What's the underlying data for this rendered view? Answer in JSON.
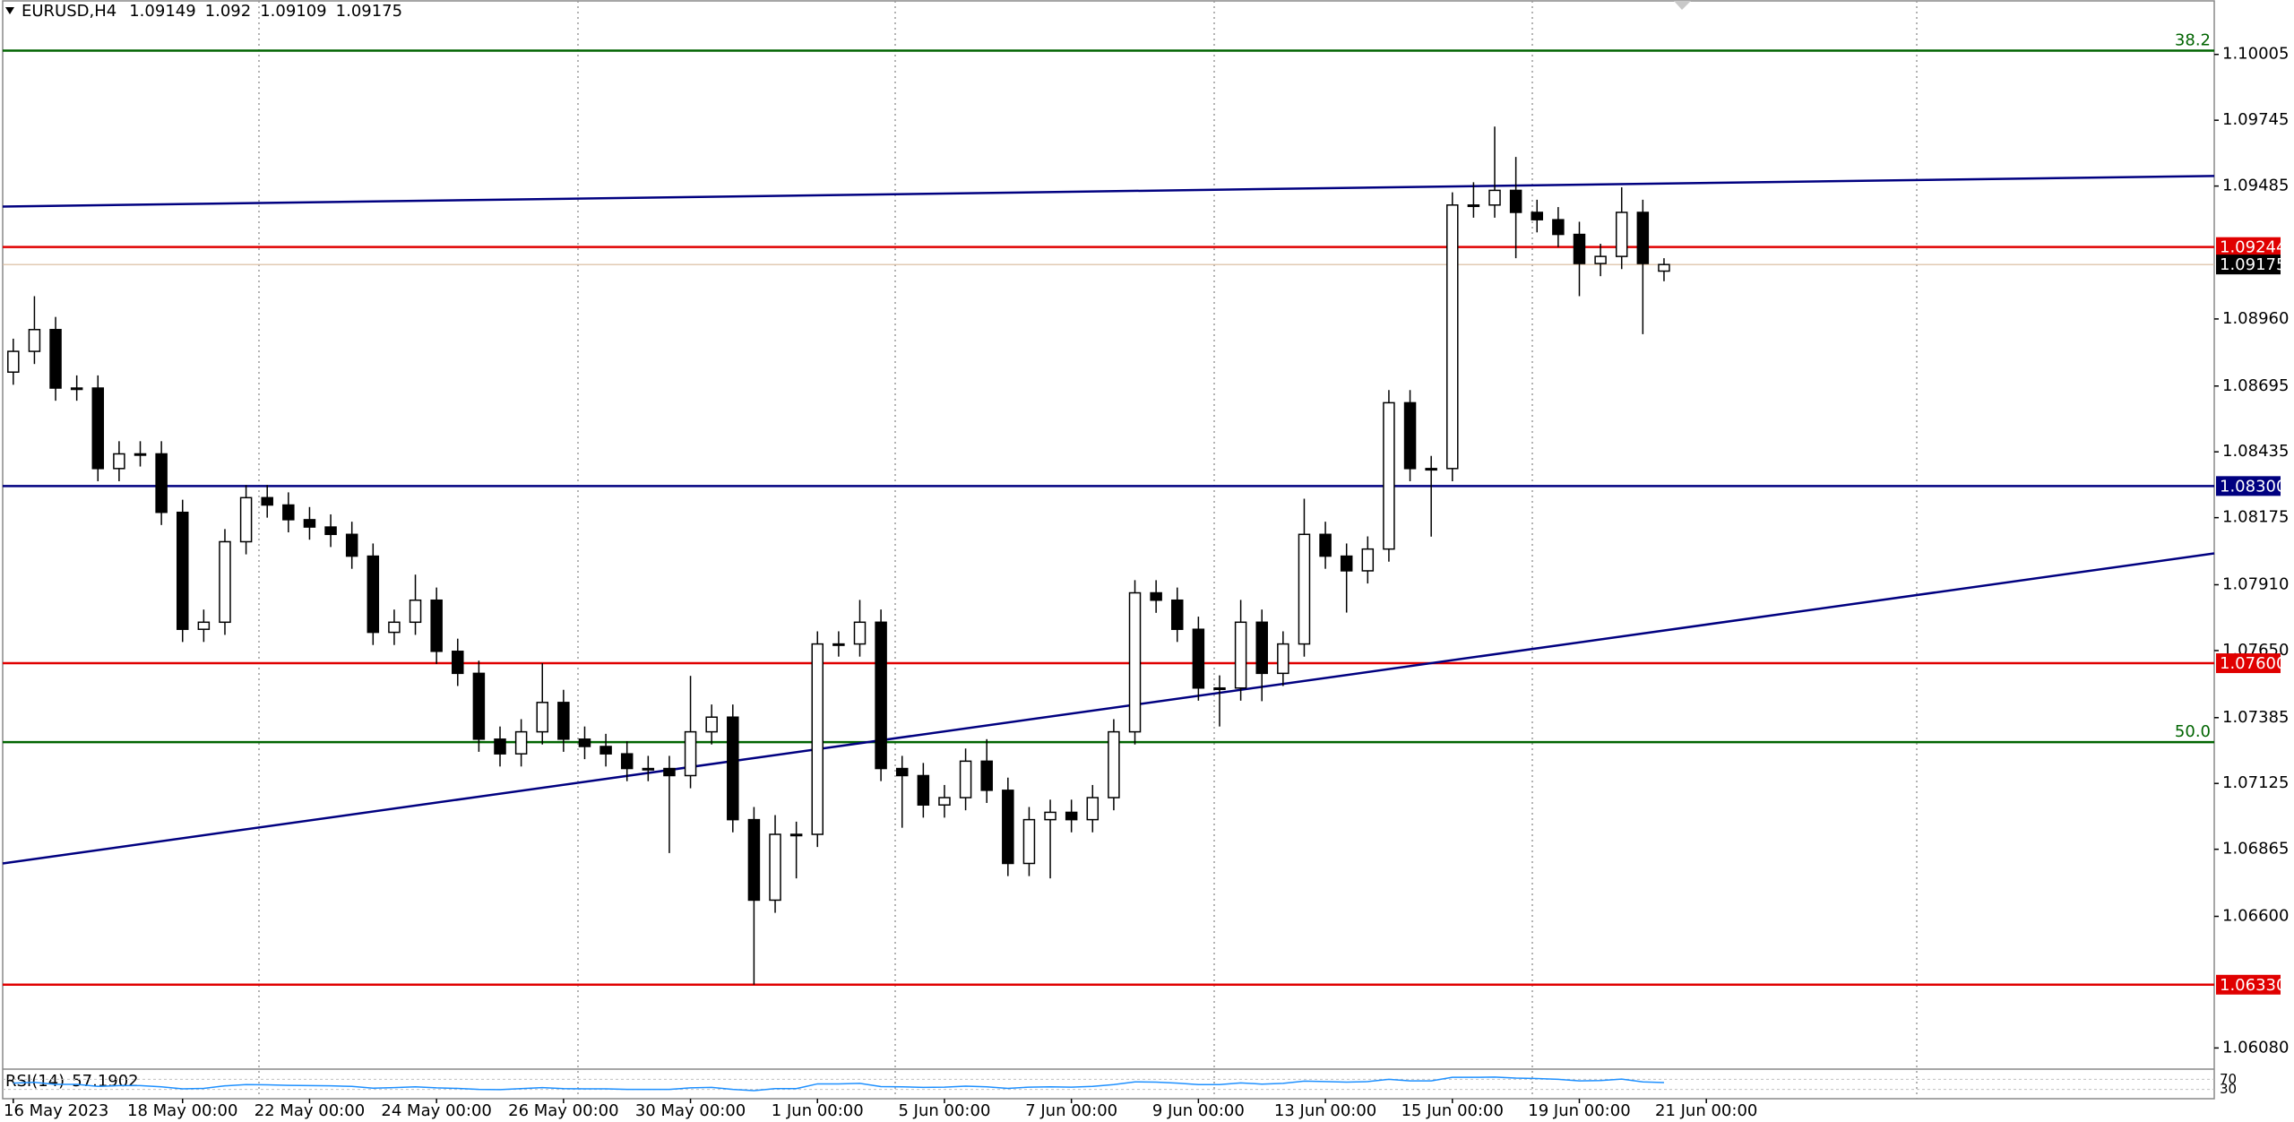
{
  "chart_data": {
    "type": "candlestick",
    "title": "EURUSD,H4",
    "up_color": "#ffffff",
    "down_color": "#000000",
    "open": [
      1.0875,
      1.08832,
      1.08918,
      1.08687,
      1.08687,
      1.08369,
      1.08427,
      1.08427,
      1.08196,
      1.07734,
      1.07762,
      1.0808,
      1.08254,
      1.08225,
      1.08167,
      1.08138,
      1.08109,
      1.08023,
      1.07722,
      1.07762,
      1.07849,
      1.07647,
      1.0756,
      1.073,
      1.07242,
      1.07329,
      1.07445,
      1.073,
      1.07271,
      1.07242,
      1.07184,
      1.07184,
      1.07156,
      1.07329,
      1.07387,
      1.06982,
      1.06664,
      1.06924,
      1.06924,
      1.07676,
      1.07676,
      1.07762,
      1.07184,
      1.07156,
      1.0704,
      1.07069,
      1.07213,
      1.07098,
      1.06809,
      1.06982,
      1.07011,
      1.06982,
      1.07069,
      1.07329,
      1.07878,
      1.07849,
      1.07734,
      1.07502,
      1.07502,
      1.07762,
      1.0756,
      1.07676,
      1.08109,
      1.08023,
      1.07965,
      1.08051,
      1.08629,
      1.08369,
      1.08369,
      1.0941,
      1.0941,
      1.09468,
      1.09381,
      1.09352,
      1.09294,
      1.09179,
      1.09207,
      1.09381,
      1.09149
    ],
    "high": [
      1.08882,
      1.0905,
      1.08968,
      1.08737,
      1.08737,
      1.08477,
      1.08477,
      1.08477,
      1.08246,
      1.07812,
      1.0813,
      1.08304,
      1.08304,
      1.08275,
      1.08217,
      1.08188,
      1.08159,
      1.08073,
      1.07812,
      1.0795,
      1.07899,
      1.07697,
      1.0761,
      1.0735,
      1.07379,
      1.076,
      1.07495,
      1.0735,
      1.07321,
      1.07292,
      1.07234,
      1.07234,
      1.0755,
      1.07437,
      1.07437,
      1.07032,
      1.07,
      1.06974,
      1.07726,
      1.07726,
      1.0785,
      1.07812,
      1.07234,
      1.07206,
      1.07119,
      1.07263,
      1.073,
      1.07148,
      1.07032,
      1.07061,
      1.07061,
      1.07119,
      1.07379,
      1.07928,
      1.07928,
      1.07899,
      1.07784,
      1.07552,
      1.0785,
      1.07812,
      1.07726,
      1.0825,
      1.08159,
      1.08073,
      1.08101,
      1.08679,
      1.08679,
      1.08419,
      1.0946,
      1.095,
      1.0972,
      1.096,
      1.09431,
      1.09402,
      1.09344,
      1.09257,
      1.0948,
      1.09431,
      1.092
    ],
    "low": [
      1.087,
      1.08782,
      1.08637,
      1.08637,
      1.08319,
      1.08319,
      1.08377,
      1.08146,
      1.07684,
      1.07684,
      1.07712,
      1.0803,
      1.08175,
      1.08117,
      1.08088,
      1.08059,
      1.07973,
      1.07672,
      1.07672,
      1.07712,
      1.07597,
      1.0751,
      1.0725,
      1.07192,
      1.07192,
      1.07279,
      1.0725,
      1.07221,
      1.07192,
      1.07134,
      1.07134,
      1.0685,
      1.07106,
      1.07279,
      1.06932,
      1.0633,
      1.06614,
      1.0675,
      1.06874,
      1.07626,
      1.07626,
      1.07134,
      1.0695,
      1.0699,
      1.0699,
      1.07019,
      1.07048,
      1.06759,
      1.06759,
      1.0675,
      1.06932,
      1.06932,
      1.07019,
      1.07279,
      1.07799,
      1.07684,
      1.07452,
      1.0735,
      1.07452,
      1.0745,
      1.0751,
      1.07626,
      1.07973,
      1.078,
      1.07915,
      1.08001,
      1.08319,
      1.081,
      1.08319,
      1.0936,
      1.0936,
      1.092,
      1.09302,
      1.09244,
      1.0905,
      1.09129,
      1.09157,
      1.089,
      1.09109
    ],
    "close": [
      1.08832,
      1.08918,
      1.08687,
      1.08687,
      1.08369,
      1.08427,
      1.08427,
      1.08196,
      1.07734,
      1.07762,
      1.0808,
      1.08254,
      1.08225,
      1.08167,
      1.08138,
      1.08109,
      1.08023,
      1.07722,
      1.07762,
      1.07849,
      1.07647,
      1.0756,
      1.073,
      1.07242,
      1.07329,
      1.07445,
      1.073,
      1.07271,
      1.07242,
      1.07184,
      1.07184,
      1.07156,
      1.07329,
      1.07387,
      1.06982,
      1.06664,
      1.06924,
      1.06924,
      1.07676,
      1.07676,
      1.07762,
      1.07184,
      1.07156,
      1.0704,
      1.07069,
      1.07213,
      1.07098,
      1.06809,
      1.06982,
      1.07011,
      1.06982,
      1.07069,
      1.07329,
      1.07878,
      1.07849,
      1.07734,
      1.07502,
      1.07502,
      1.07762,
      1.0756,
      1.07676,
      1.08109,
      1.08023,
      1.07965,
      1.08051,
      1.08629,
      1.08369,
      1.08369,
      1.0941,
      1.0941,
      1.09468,
      1.09381,
      1.09352,
      1.09294,
      1.09179,
      1.09207,
      1.09381,
      1.09179,
      1.09175
    ],
    "xlim": [
      -0.5,
      104
    ],
    "ylim": [
      1.06,
      1.1022
    ],
    "xticks": [
      {
        "value": 0,
        "label": "16 May 2023"
      },
      {
        "value": 8,
        "label": "18 May 00:00"
      },
      {
        "value": 14,
        "label": "22 May 00:00"
      },
      {
        "value": 20,
        "label": "24 May 00:00"
      },
      {
        "value": 26,
        "label": "26 May 00:00"
      },
      {
        "value": 32,
        "label": "30 May 00:00"
      },
      {
        "value": 38,
        "label": "1 Jun 00:00"
      },
      {
        "value": 44,
        "label": "5 Jun 00:00"
      },
      {
        "value": 50,
        "label": "7 Jun 00:00"
      },
      {
        "value": 56,
        "label": "9 Jun 00:00"
      },
      {
        "value": 62,
        "label": "13 Jun 00:00"
      },
      {
        "value": 68,
        "label": "15 Jun 00:00"
      },
      {
        "value": 74,
        "label": "19 Jun 00:00"
      },
      {
        "value": 80,
        "label": "21 Jun 00:00"
      }
    ],
    "yticks": [
      1.10005,
      1.09745,
      1.09485,
      {
        "value": 1.0896,
        "label": "1.08960"
      },
      1.08695,
      1.08435,
      1.08175,
      {
        "value": 1.0791,
        "label": "1.07910"
      },
      {
        "value": 1.0765,
        "label": "1.07650"
      },
      1.07385,
      1.07125,
      1.06865,
      {
        "value": 1.066,
        "label": "1.06600"
      },
      {
        "value": 1.0608,
        "label": "1.06080"
      }
    ],
    "levels": [
      {
        "value": 1.09244,
        "label": "1.09244",
        "color": "#e00000"
      },
      {
        "value": 1.083,
        "label": "1.08300",
        "color": "#000080"
      },
      {
        "value": 1.076,
        "label": "1.07600",
        "color": "#e00000"
      },
      {
        "value": 1.0633,
        "label": "1.06330",
        "color": "#e00000"
      }
    ],
    "fib_levels": [
      {
        "value": 1.1002,
        "label": "38.2",
        "color": "#006400"
      },
      {
        "value": 1.07288,
        "label": "50.0",
        "color": "#006400"
      }
    ],
    "trendlines": [
      {
        "x": [
          -0.5,
          104
        ],
        "y": [
          1.09404,
          1.09525
        ],
        "color": "#000080"
      },
      {
        "x": [
          -0.5,
          104
        ],
        "y": [
          1.06809,
          1.08034
        ],
        "color": "#000080"
      }
    ],
    "current_price": 1.09175,
    "rsi": {
      "label": "RSI(14)",
      "value": 57.1902,
      "color": "#1e90ff",
      "ylim": [
        0,
        100
      ],
      "yticks": [
        30,
        70
      ],
      "values": [
        55,
        58,
        50,
        50,
        42,
        45,
        45,
        40,
        32,
        34,
        44,
        49,
        48,
        46,
        45,
        44,
        42,
        35,
        37,
        40,
        36,
        34,
        30,
        29,
        33,
        37,
        33,
        32,
        32,
        30,
        30,
        30,
        36,
        38,
        30,
        25,
        33,
        33,
        52,
        52,
        54,
        41,
        40,
        38,
        39,
        43,
        40,
        34,
        39,
        40,
        39,
        42,
        49,
        60,
        59,
        55,
        49,
        49,
        56,
        51,
        54,
        63,
        61,
        59,
        61,
        70,
        64,
        64,
        78,
        78,
        79,
        75,
        73,
        70,
        64,
        65,
        71,
        60,
        57.1902
      ]
    }
  }
}
